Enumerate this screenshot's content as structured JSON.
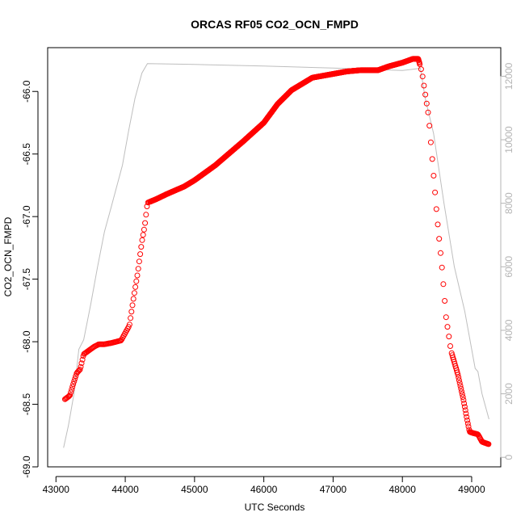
{
  "chart_data": {
    "type": "scatter",
    "title": "ORCAS RF05 CO2_OCN_FMPD",
    "xlabel": "UTC Seconds",
    "ylabel": "CO2_OCN_FMPD",
    "y2label": "",
    "xlim": [
      42880,
      49420
    ],
    "ylim": [
      -69.0,
      -65.65
    ],
    "y2lim": [
      -300,
      12900
    ],
    "x_ticks": [
      43000,
      44000,
      45000,
      46000,
      47000,
      48000,
      49000
    ],
    "y_ticks": [
      -69.0,
      -68.5,
      -68.0,
      -67.5,
      -67.0,
      -66.5,
      -66.0
    ],
    "y2_ticks": [
      0,
      2000,
      4000,
      6000,
      8000,
      10000,
      12000
    ],
    "colors": {
      "primary_series": "#ff0000",
      "secondary_series": "#bebebe",
      "secondary_axis": "#b4b4b4"
    },
    "series": [
      {
        "axis": "left",
        "style": "open-circles",
        "anchors": [
          [
            43130,
            -68.46
          ],
          [
            43200,
            -68.43
          ],
          [
            43260,
            -68.32
          ],
          [
            43300,
            -68.25
          ],
          [
            43350,
            -68.22
          ],
          [
            43400,
            -68.1
          ],
          [
            43450,
            -68.08
          ],
          [
            43550,
            -68.04
          ],
          [
            43620,
            -68.02
          ],
          [
            43700,
            -68.02
          ],
          [
            43800,
            -68.01
          ],
          [
            43940,
            -67.99
          ],
          [
            44000,
            -67.93
          ],
          [
            44060,
            -67.87
          ],
          [
            44120,
            -67.65
          ],
          [
            44180,
            -67.45
          ],
          [
            44240,
            -67.2
          ],
          [
            44280,
            -67.08
          ],
          [
            44320,
            -66.89
          ],
          [
            44450,
            -66.86
          ],
          [
            44600,
            -66.82
          ],
          [
            44850,
            -66.76
          ],
          [
            45000,
            -66.71
          ],
          [
            45300,
            -66.59
          ],
          [
            45700,
            -66.4
          ],
          [
            46000,
            -66.25
          ],
          [
            46200,
            -66.1
          ],
          [
            46400,
            -65.99
          ],
          [
            46700,
            -65.89
          ],
          [
            47000,
            -65.86
          ],
          [
            47200,
            -65.84
          ],
          [
            47400,
            -65.83
          ],
          [
            47650,
            -65.83
          ],
          [
            47800,
            -65.8
          ],
          [
            48000,
            -65.77
          ],
          [
            48150,
            -65.74
          ],
          [
            48230,
            -65.74
          ],
          [
            48280,
            -65.84
          ],
          [
            48310,
            -65.95
          ],
          [
            48380,
            -66.2
          ],
          [
            48440,
            -66.6
          ],
          [
            48500,
            -67.0
          ],
          [
            48570,
            -67.4
          ],
          [
            48630,
            -67.8
          ],
          [
            48700,
            -68.07
          ],
          [
            48800,
            -68.26
          ],
          [
            48880,
            -68.46
          ],
          [
            48940,
            -68.64
          ],
          [
            48970,
            -68.72
          ],
          [
            49020,
            -68.73
          ],
          [
            49090,
            -68.74
          ],
          [
            49150,
            -68.8
          ],
          [
            49250,
            -68.82
          ]
        ]
      },
      {
        "axis": "right",
        "style": "line",
        "anchors": [
          [
            43110,
            300
          ],
          [
            43180,
            1000
          ],
          [
            43260,
            2000
          ],
          [
            43330,
            3400
          ],
          [
            43400,
            3700
          ],
          [
            43500,
            4800
          ],
          [
            43600,
            6000
          ],
          [
            43700,
            7100
          ],
          [
            43800,
            7900
          ],
          [
            43960,
            9200
          ],
          [
            44050,
            10300
          ],
          [
            44140,
            11300
          ],
          [
            44240,
            12100
          ],
          [
            44320,
            12400
          ],
          [
            45000,
            12370
          ],
          [
            46000,
            12320
          ],
          [
            47000,
            12260
          ],
          [
            48000,
            12180
          ],
          [
            48260,
            12250
          ],
          [
            48330,
            11300
          ],
          [
            48450,
            10200
          ],
          [
            48600,
            8000
          ],
          [
            48750,
            6000
          ],
          [
            48900,
            4600
          ],
          [
            49050,
            2800
          ],
          [
            49090,
            2700
          ],
          [
            49150,
            2000
          ],
          [
            49250,
            1200
          ]
        ]
      }
    ]
  }
}
